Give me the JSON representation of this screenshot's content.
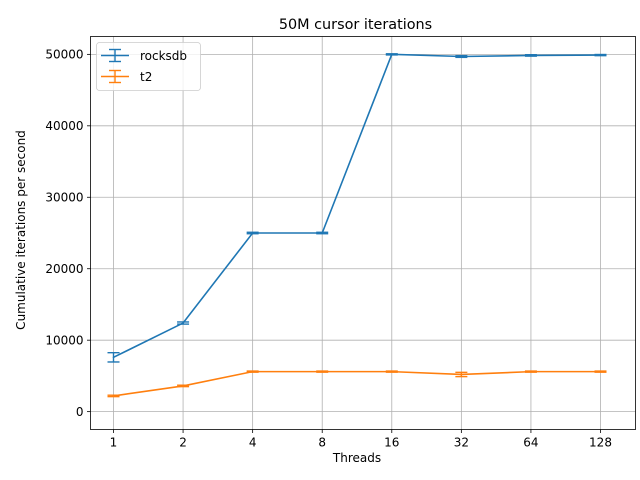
{
  "chart_data": {
    "type": "line",
    "title": "50M cursor iterations",
    "xlabel": "Threads",
    "ylabel": "Cumulative iterations per second",
    "categories": [
      "1",
      "2",
      "4",
      "8",
      "16",
      "32",
      "64",
      "128"
    ],
    "ylim": [
      -2500,
      52500
    ],
    "yticks": [
      0,
      10000,
      20000,
      30000,
      40000,
      50000
    ],
    "ytick_labels": [
      "0",
      "10000",
      "20000",
      "30000",
      "40000",
      "50000"
    ],
    "grid": true,
    "legend_position": "top-left",
    "series": [
      {
        "name": "rocksdb",
        "color": "#1f77b4",
        "values": [
          7600,
          12400,
          25000,
          25000,
          50000,
          49700,
          49850,
          49900
        ],
        "errors": [
          650,
          150,
          100,
          100,
          80,
          120,
          100,
          80
        ]
      },
      {
        "name": "t2",
        "color": "#ff7f0e",
        "values": [
          2200,
          3600,
          5600,
          5600,
          5600,
          5200,
          5600,
          5600
        ],
        "errors": [
          100,
          100,
          80,
          80,
          80,
          300,
          80,
          80
        ]
      }
    ]
  }
}
